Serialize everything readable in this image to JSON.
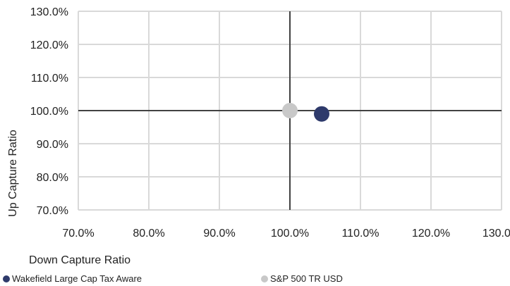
{
  "chart_data": {
    "type": "scatter",
    "title": "",
    "xlabel": "Down Capture Ratio",
    "ylabel": "Up Capture Ratio",
    "xlim": [
      70,
      130
    ],
    "ylim": [
      70,
      130
    ],
    "x_ticks": [
      70,
      80,
      90,
      100,
      110,
      120,
      130
    ],
    "y_ticks": [
      70,
      80,
      90,
      100,
      110,
      120,
      130
    ],
    "x_tick_labels": [
      "70.0%",
      "80.0%",
      "90.0%",
      "100.0%",
      "110.0%",
      "120.0%",
      "130.0%"
    ],
    "y_tick_labels": [
      "70.0%",
      "80.0%",
      "90.0%",
      "100.0%",
      "110.0%",
      "120.0%",
      "130.0%"
    ],
    "grid": true,
    "reference_lines": {
      "x": 100,
      "y": 100
    },
    "legend_position": "bottom",
    "series": [
      {
        "name": "Wakefield Large Cap Tax Aware",
        "color": "#2e3a6b",
        "x": [
          104.5
        ],
        "y": [
          99.0
        ]
      },
      {
        "name": "S&P 500 TR USD",
        "color": "#c8c8c8",
        "x": [
          100.0
        ],
        "y": [
          100.0
        ]
      }
    ]
  }
}
